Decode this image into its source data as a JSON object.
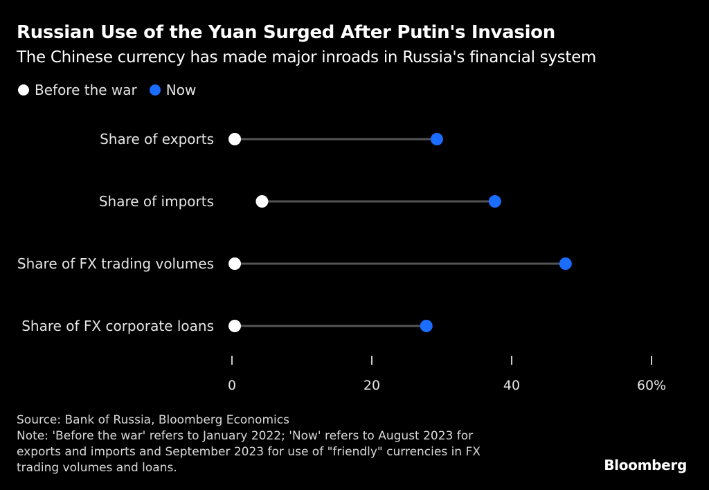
{
  "header": {
    "title": "Russian Use of the Yuan Surged After Putin's Invasion",
    "subtitle": "The Chinese currency has made major inroads in Russia's financial system"
  },
  "legend": [
    {
      "label": "Before the war",
      "color": "#ffffff"
    },
    {
      "label": "Now",
      "color": "#1a6dff"
    }
  ],
  "colors": {
    "background": "#000000",
    "before": "#ffffff",
    "now": "#1a6dff",
    "connector": "#555555",
    "text": "#e6e6e6"
  },
  "chart_data": {
    "type": "dumbbell",
    "categories": [
      "Share of exports",
      "Share of imports",
      "Share of FX trading volumes",
      "Share of FX corporate loans"
    ],
    "series": [
      {
        "name": "Before the war",
        "values": [
          0.4,
          4.3,
          0.4,
          0.4
        ]
      },
      {
        "name": "Now",
        "values": [
          29.3,
          37.6,
          47.7,
          27.8
        ]
      }
    ],
    "xlim": [
      0,
      60
    ],
    "xticks": [
      0,
      20,
      40,
      60
    ],
    "xtick_labels": [
      "0",
      "20",
      "40",
      "60%"
    ],
    "grid": false
  },
  "footer": {
    "source": "Source: Bank of Russia, Bloomberg Economics",
    "note_lines": [
      "Note: 'Before the war' refers to January 2022; 'Now' refers to August 2023 for",
      "exports and imports and September 2023 for use of \"friendly\" currencies in FX",
      "trading volumes and loans."
    ],
    "brand": "Bloomberg"
  }
}
